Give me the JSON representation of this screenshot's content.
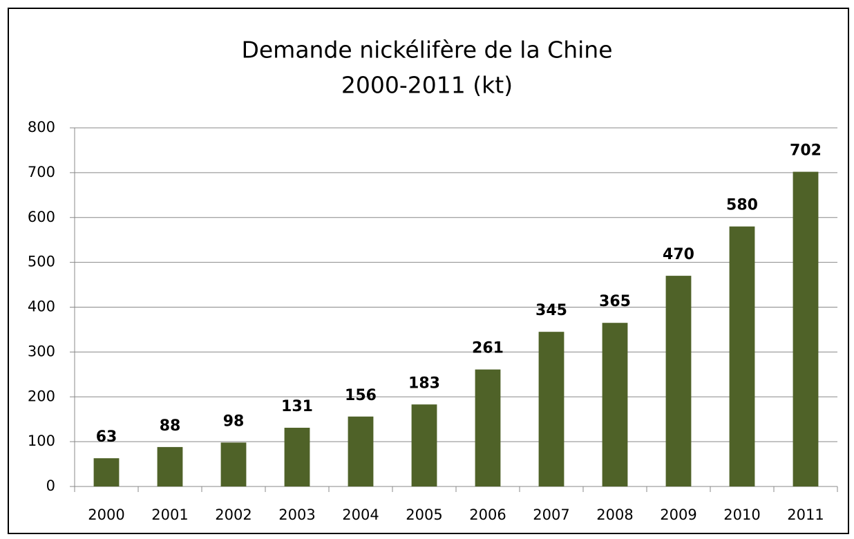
{
  "chart_data": {
    "type": "bar",
    "title": "Demande nickélifère de la Chine",
    "subtitle": "2000-2011 (kt)",
    "categories": [
      "2000",
      "2001",
      "2002",
      "2003",
      "2004",
      "2005",
      "2006",
      "2007",
      "2008",
      "2009",
      "2010",
      "2011"
    ],
    "values": [
      63,
      88,
      98,
      131,
      156,
      183,
      261,
      345,
      365,
      470,
      580,
      702
    ],
    "color": "#4f6228",
    "ylim": [
      0,
      800
    ],
    "yticks": [
      0,
      100,
      200,
      300,
      400,
      500,
      600,
      700,
      800
    ],
    "grid": true
  }
}
